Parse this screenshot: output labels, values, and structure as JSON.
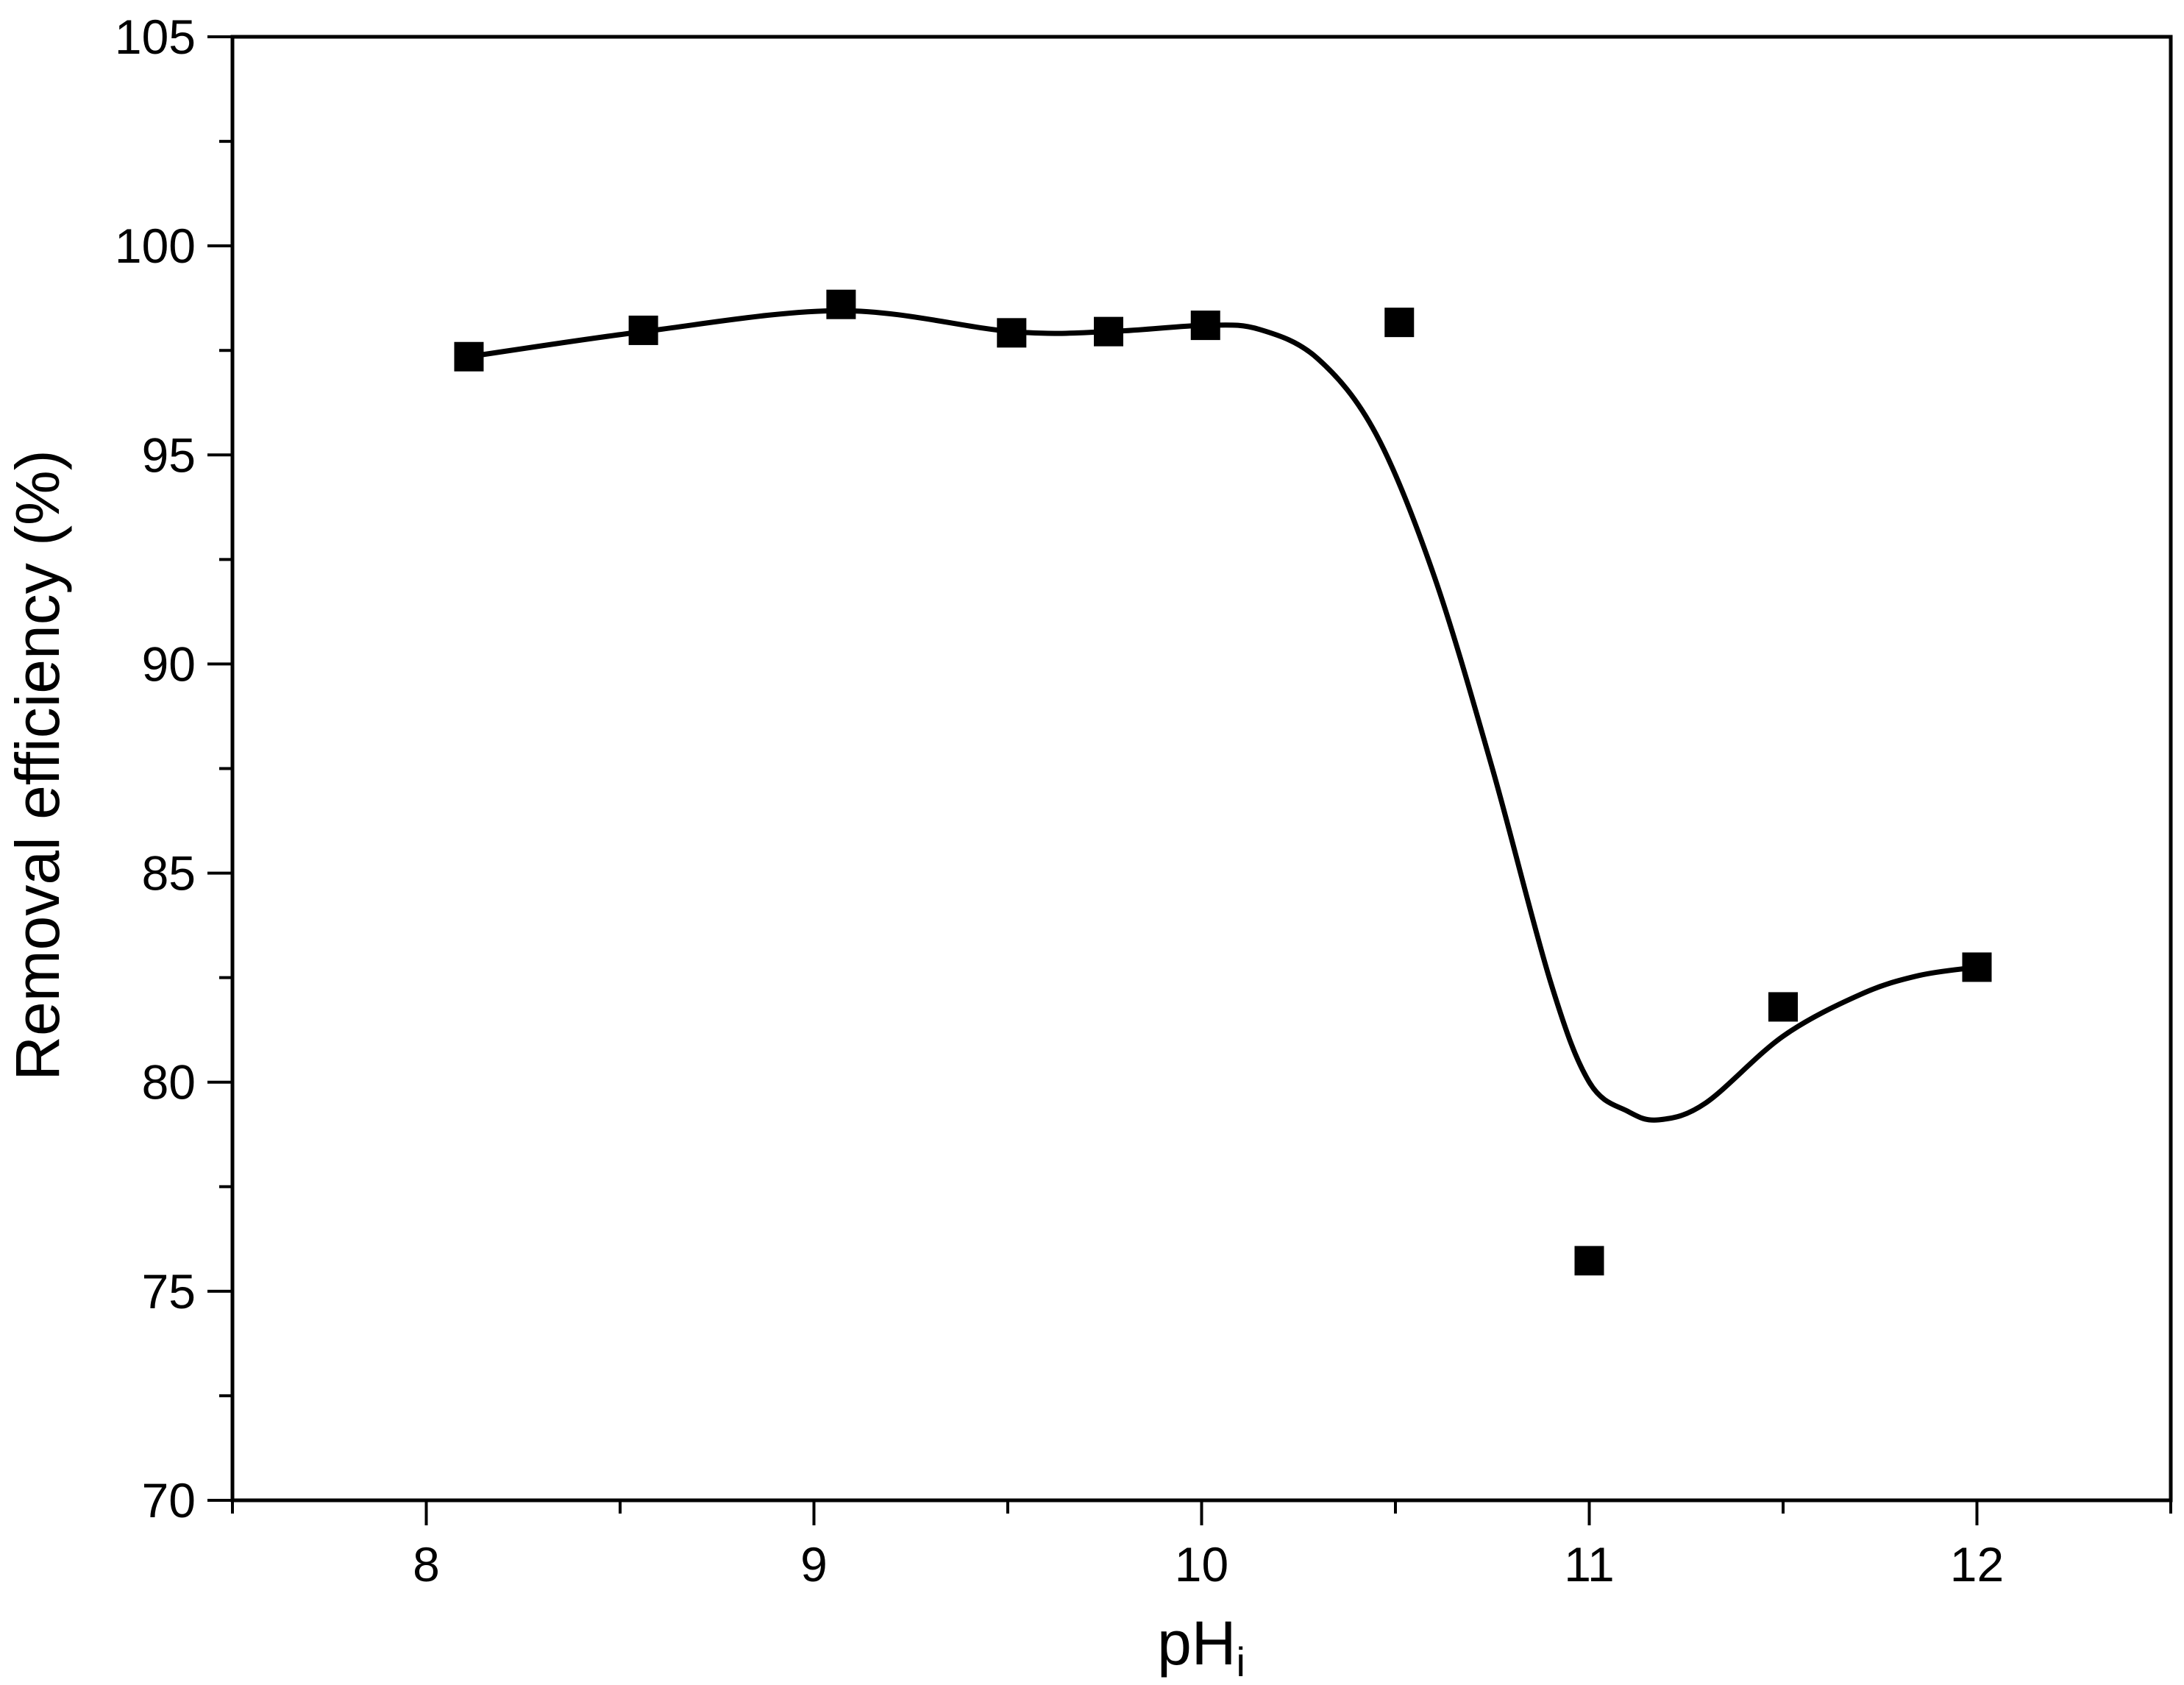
{
  "chart_data": {
    "type": "scatter",
    "xlabel_main": "pH",
    "xlabel_sub": "i",
    "ylabel": "Removal efficiency (%)",
    "xlim": [
      7.5,
      12.5
    ],
    "ylim": [
      70,
      105
    ],
    "xticks": [
      8,
      9,
      10,
      11,
      12
    ],
    "yticks": [
      70,
      75,
      80,
      85,
      90,
      95,
      100,
      105
    ],
    "x_minor_step": 0.5,
    "y_minor_step": 2.5,
    "grid": false,
    "series": [
      {
        "marker": "square",
        "color": "#000000",
        "x": [
          8.11,
          8.56,
          9.07,
          9.51,
          9.76,
          10.01,
          10.51,
          11.0,
          11.5,
          12.0
        ],
        "y": [
          97.35,
          97.98,
          98.6,
          97.92,
          97.95,
          98.1,
          98.17,
          75.73,
          81.8,
          82.75
        ]
      },
      {
        "marker": "none",
        "style": "smooth-fit",
        "color": "#000000",
        "x": [
          8.11,
          8.56,
          9.07,
          9.51,
          9.76,
          10.01,
          10.15,
          10.3,
          10.45,
          10.6,
          10.75,
          10.9,
          11.0,
          11.1,
          11.18,
          11.3,
          11.5,
          11.7,
          11.85,
          12.0
        ],
        "y": [
          97.35,
          97.95,
          98.45,
          97.95,
          97.95,
          98.1,
          98.0,
          97.3,
          95.5,
          92.1,
          87.5,
          82.4,
          80.0,
          79.3,
          79.1,
          79.5,
          81.1,
          82.1,
          82.55,
          82.75
        ]
      }
    ]
  }
}
